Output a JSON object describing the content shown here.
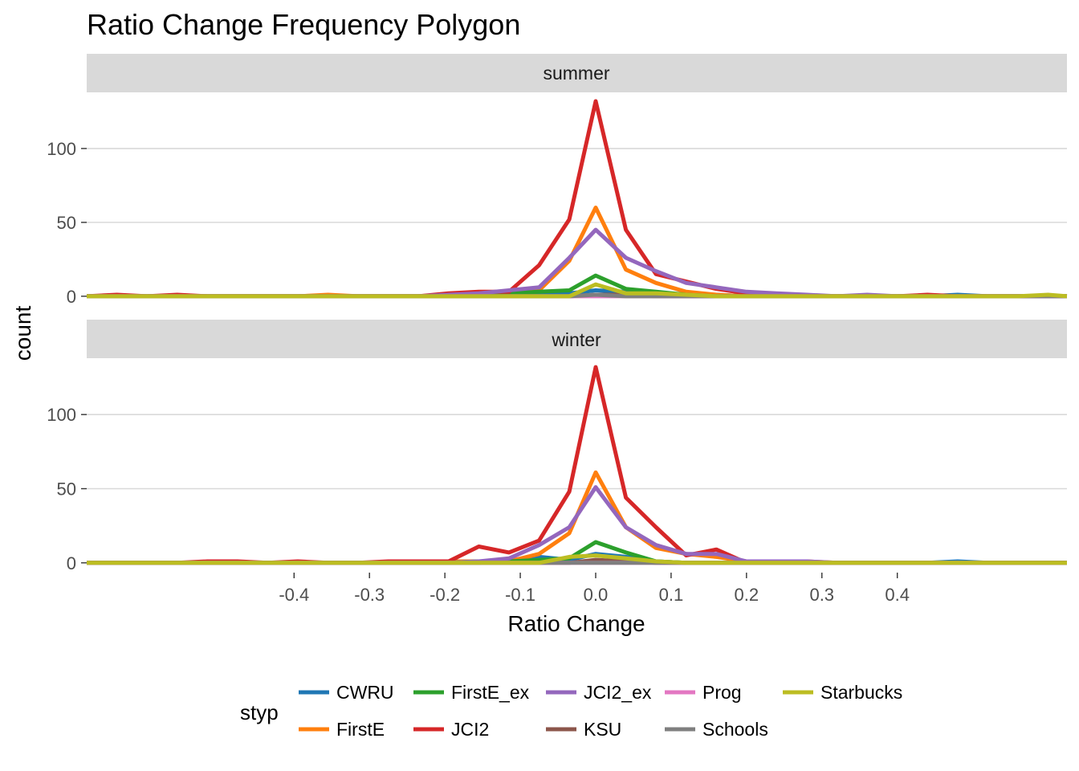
{
  "chart_data": {
    "type": "line",
    "title": "Ratio Change Frequency Polygon",
    "xlabel": "Ratio Change",
    "ylabel": "count",
    "xlim": [
      -0.675,
      0.625
    ],
    "ylim": [
      -6.6,
      138
    ],
    "x_ticks": [
      -0.4,
      -0.3,
      -0.2,
      -0.1,
      0.0,
      0.1,
      0.2,
      0.3,
      0.4
    ],
    "x_tick_labels": [
      "-0.4",
      "-0.3",
      "-0.2",
      "-0.1",
      "0.0",
      "0.1",
      "0.2",
      "0.3",
      "0.4"
    ],
    "y_ticks": [
      0,
      50,
      100
    ],
    "y_tick_labels": [
      "0",
      "50",
      "100"
    ],
    "grid": "horizontal major",
    "legend": {
      "title": "styp",
      "position": "bottom",
      "items": [
        "CWRU",
        "FirstE",
        "FirstE_ex",
        "JCI2",
        "JCI2_ex",
        "KSU",
        "Prog",
        "Schools",
        "Starbucks"
      ]
    },
    "colors": {
      "CWRU": "#1f77b4",
      "FirstE": "#ff7f0e",
      "FirstE_ex": "#2ca02c",
      "JCI2": "#d62728",
      "JCI2_ex": "#9467bd",
      "KSU": "#8c564b",
      "Prog": "#e377c2",
      "Schools": "#7f7f7f",
      "Starbucks": "#bcbd22"
    },
    "x": [
      -0.675,
      -0.635,
      -0.595,
      -0.555,
      -0.515,
      -0.475,
      -0.435,
      -0.395,
      -0.355,
      -0.315,
      -0.275,
      -0.235,
      -0.195,
      -0.155,
      -0.115,
      -0.075,
      -0.035,
      0.0,
      0.04,
      0.08,
      0.12,
      0.16,
      0.2,
      0.24,
      0.28,
      0.32,
      0.36,
      0.4,
      0.44,
      0.48,
      0.52,
      0.56,
      0.6,
      0.625
    ],
    "panels": [
      {
        "strip": "summer",
        "series": [
          {
            "name": "CWRU",
            "values": [
              0,
              0,
              0,
              0,
              0,
              0,
              0,
              0,
              0,
              0,
              0,
              0,
              0,
              0,
              0,
              1,
              2,
              4,
              3,
              2,
              1,
              1,
              0,
              0,
              0,
              0,
              0,
              0,
              0,
              1,
              0,
              0,
              0,
              0
            ]
          },
          {
            "name": "FirstE",
            "values": [
              0,
              0,
              0,
              0,
              0,
              0,
              0,
              0,
              1,
              0,
              0,
              0,
              0,
              1,
              2,
              4,
              24,
              60,
              18,
              9,
              3,
              1,
              0,
              0,
              0,
              0,
              0,
              0,
              0,
              0,
              0,
              0,
              0,
              0
            ]
          },
          {
            "name": "FirstE_ex",
            "values": [
              0,
              0,
              0,
              0,
              0,
              0,
              0,
              0,
              0,
              0,
              0,
              0,
              0,
              1,
              2,
              3,
              4,
              14,
              5,
              3,
              1,
              0,
              0,
              0,
              0,
              0,
              0,
              0,
              0,
              0,
              0,
              0,
              0,
              0
            ]
          },
          {
            "name": "JCI2",
            "values": [
              0,
              1,
              0,
              1,
              0,
              0,
              0,
              0,
              0,
              0,
              0,
              0,
              2,
              3,
              3,
              21,
              52,
              132,
              45,
              15,
              10,
              5,
              2,
              1,
              0,
              0,
              0,
              0,
              1,
              0,
              0,
              0,
              0,
              0
            ]
          },
          {
            "name": "JCI2_ex",
            "values": [
              0,
              0,
              0,
              0,
              0,
              0,
              0,
              0,
              0,
              0,
              0,
              0,
              1,
              2,
              4,
              6,
              26,
              45,
              26,
              17,
              9,
              6,
              3,
              2,
              1,
              0,
              1,
              0,
              0,
              0,
              0,
              0,
              0,
              0
            ]
          },
          {
            "name": "KSU",
            "values": [
              0,
              0,
              0,
              0,
              0,
              0,
              0,
              0,
              0,
              0,
              0,
              0,
              0,
              0,
              0,
              0,
              0,
              1,
              1,
              0,
              0,
              0,
              0,
              0,
              0,
              0,
              0,
              0,
              0,
              0,
              0,
              0,
              0,
              0
            ]
          },
          {
            "name": "Prog",
            "values": [
              0,
              0,
              0,
              0,
              0,
              0,
              0,
              0,
              0,
              0,
              0,
              0,
              0,
              0,
              0,
              0,
              0,
              0,
              0,
              0,
              0,
              0,
              0,
              0,
              0,
              0,
              0,
              0,
              0,
              0,
              0,
              0,
              0,
              0
            ]
          },
          {
            "name": "Schools",
            "values": [
              0,
              0,
              0,
              0,
              0,
              0,
              0,
              0,
              0,
              0,
              0,
              0,
              0,
              0,
              0,
              0,
              0,
              1,
              0,
              0,
              0,
              0,
              0,
              0,
              0,
              0,
              0,
              0,
              0,
              0,
              0,
              0,
              0,
              0
            ]
          },
          {
            "name": "Starbucks",
            "values": [
              0,
              0,
              0,
              0,
              0,
              0,
              0,
              0,
              0,
              0,
              0,
              0,
              0,
              0,
              0,
              0,
              0,
              8,
              2,
              2,
              1,
              0,
              0,
              0,
              0,
              0,
              0,
              0,
              0,
              0,
              0,
              0,
              1,
              0
            ]
          }
        ]
      },
      {
        "strip": "winter",
        "series": [
          {
            "name": "CWRU",
            "values": [
              0,
              0,
              0,
              0,
              0,
              0,
              0,
              0,
              0,
              0,
              0,
              0,
              0,
              0,
              1,
              4,
              2,
              6,
              4,
              1,
              0,
              0,
              0,
              0,
              0,
              0,
              0,
              0,
              0,
              1,
              0,
              0,
              0,
              0
            ]
          },
          {
            "name": "FirstE",
            "values": [
              0,
              0,
              0,
              0,
              0,
              0,
              0,
              0,
              0,
              0,
              0,
              0,
              1,
              1,
              1,
              6,
              20,
              61,
              24,
              10,
              6,
              4,
              1,
              1,
              1,
              0,
              0,
              0,
              0,
              0,
              0,
              0,
              0,
              0
            ]
          },
          {
            "name": "FirstE_ex",
            "values": [
              0,
              0,
              0,
              0,
              0,
              0,
              0,
              0,
              0,
              0,
              0,
              0,
              0,
              1,
              1,
              2,
              3,
              14,
              7,
              1,
              0,
              0,
              0,
              0,
              0,
              0,
              0,
              0,
              0,
              0,
              0,
              0,
              0,
              0
            ]
          },
          {
            "name": "JCI2",
            "values": [
              0,
              0,
              0,
              0,
              1,
              1,
              0,
              1,
              0,
              0,
              1,
              1,
              1,
              11,
              7,
              15,
              48,
              132,
              44,
              24,
              5,
              9,
              0,
              0,
              0,
              0,
              0,
              0,
              0,
              0,
              0,
              0,
              0,
              0
            ]
          },
          {
            "name": "JCI2_ex",
            "values": [
              0,
              0,
              0,
              0,
              0,
              0,
              0,
              0,
              0,
              0,
              0,
              0,
              0,
              1,
              3,
              12,
              24,
              51,
              24,
              12,
              6,
              6,
              1,
              1,
              1,
              0,
              0,
              0,
              0,
              0,
              0,
              0,
              0,
              0
            ]
          },
          {
            "name": "KSU",
            "values": [
              0,
              0,
              0,
              0,
              0,
              0,
              0,
              0,
              0,
              0,
              0,
              0,
              0,
              0,
              0,
              0,
              0,
              2,
              1,
              0,
              0,
              0,
              0,
              0,
              0,
              0,
              0,
              0,
              0,
              0,
              0,
              0,
              0,
              0
            ]
          },
          {
            "name": "Prog",
            "values": [
              0,
              0,
              0,
              0,
              0,
              0,
              0,
              0,
              0,
              0,
              0,
              0,
              0,
              0,
              0,
              0,
              0,
              0,
              0,
              0,
              0,
              0,
              0,
              0,
              0,
              0,
              0,
              0,
              0,
              0,
              0,
              0,
              0,
              0
            ]
          },
          {
            "name": "Schools",
            "values": [
              0,
              0,
              0,
              0,
              0,
              0,
              0,
              0,
              0,
              0,
              0,
              0,
              0,
              0,
              0,
              0,
              0,
              0,
              0,
              0,
              0,
              0,
              0,
              0,
              0,
              0,
              0,
              0,
              0,
              0,
              0,
              0,
              0,
              0
            ]
          },
          {
            "name": "Starbucks",
            "values": [
              0,
              0,
              0,
              0,
              0,
              0,
              0,
              0,
              0,
              0,
              0,
              0,
              0,
              0,
              0,
              0,
              4,
              5,
              3,
              1,
              0,
              0,
              0,
              0,
              0,
              0,
              0,
              0,
              0,
              0,
              0,
              0,
              0,
              0
            ]
          }
        ]
      }
    ]
  }
}
